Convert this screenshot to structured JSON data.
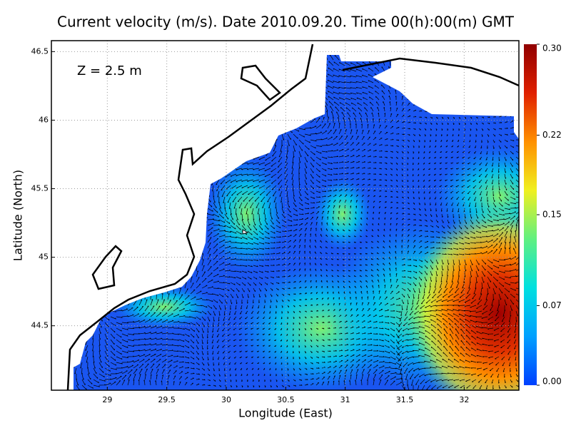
{
  "chart_data": {
    "type": "map",
    "title": "Current velocity (m/s). Date 2010.09.20. Time 00(h):00(m) GMT",
    "annotation": "Z = 2.5 m",
    "xlabel": "Longitude (East)",
    "ylabel": "Latitude (North)",
    "xlim": [
      28.53,
      32.46
    ],
    "ylim": [
      44.03,
      46.58
    ],
    "xticks": [
      29,
      29.5,
      30,
      30.5,
      31,
      31.5,
      32
    ],
    "yticks": [
      44.5,
      45,
      45.5,
      46,
      46.5
    ],
    "grid": true,
    "colorbar": {
      "lim": [
        0,
        0.3
      ],
      "ticks": [
        {
          "value": 0,
          "label": "0.00"
        },
        {
          "value": 0.07,
          "label": "0.07"
        },
        0.15,
        {
          "value": 0.22,
          "label": "0.22"
        },
        {
          "value": 0.3,
          "label": "0.30"
        }
      ],
      "colors": [
        "#0040ff",
        "#00a0ff",
        "#00e0e0",
        "#60f080",
        "#f0f020",
        "#ff9000",
        "#e02000",
        "#900000"
      ]
    }
  }
}
